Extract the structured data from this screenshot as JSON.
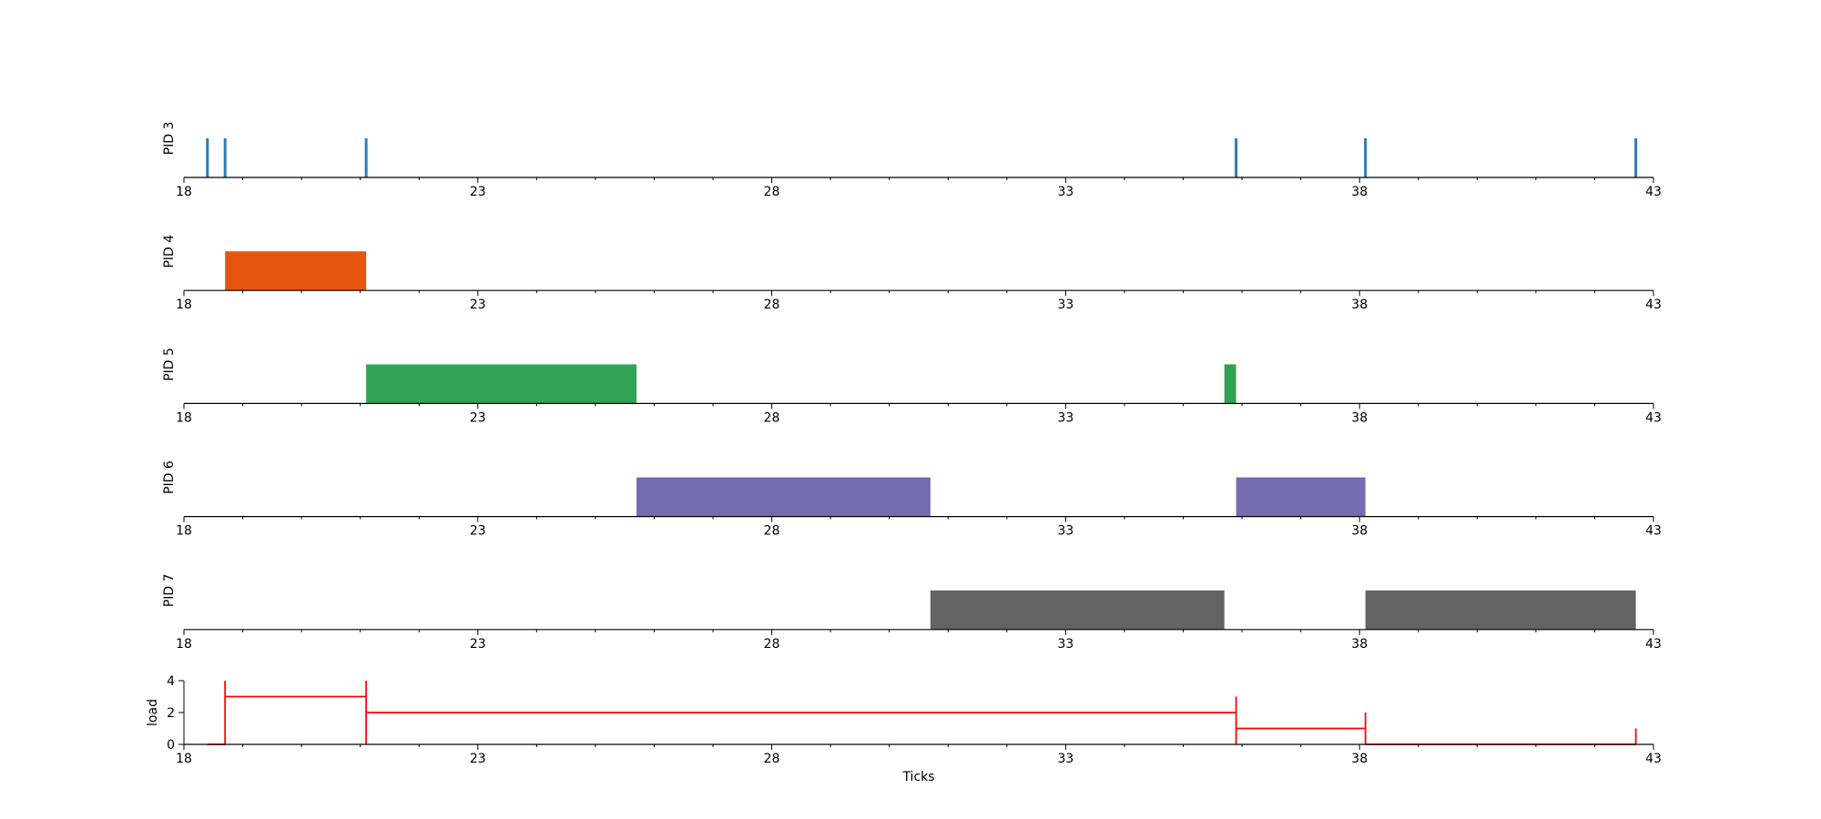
{
  "chart_data": {
    "type": "timeline",
    "xlim": [
      18,
      43
    ],
    "xticks": [
      18,
      23,
      28,
      33,
      38,
      43
    ],
    "xlabel": "Ticks",
    "panels": [
      {
        "label": "PID 3",
        "color": "#2b7bba",
        "kind": "events",
        "events": [
          18.4,
          18.7,
          21.1,
          35.9,
          38.1,
          42.7
        ]
      },
      {
        "label": "PID 4",
        "color": "#e6550d",
        "kind": "bars",
        "intervals": [
          [
            18.7,
            21.1
          ]
        ]
      },
      {
        "label": "PID 5",
        "color": "#31a354",
        "kind": "bars",
        "intervals": [
          [
            21.1,
            25.7
          ],
          [
            35.7,
            35.9
          ]
        ]
      },
      {
        "label": "PID 6",
        "color": "#756bb1",
        "kind": "bars",
        "intervals": [
          [
            25.7,
            30.7
          ],
          [
            35.9,
            38.1
          ]
        ]
      },
      {
        "label": "PID 7",
        "color": "#636363",
        "kind": "bars",
        "intervals": [
          [
            30.7,
            35.7
          ],
          [
            38.1,
            42.7
          ]
        ]
      }
    ],
    "load": {
      "label": "load",
      "color": "#ff0000",
      "yticks": [
        0,
        2,
        4
      ],
      "ylim": [
        0,
        4
      ],
      "steps": [
        {
          "x": [
            18.4,
            18.7
          ],
          "y": 0
        },
        {
          "x": [
            18.7,
            21.1
          ],
          "y": 3
        },
        {
          "x": [
            21.1,
            35.9
          ],
          "y": 2
        },
        {
          "x": [
            35.9,
            38.1
          ],
          "y": 1
        },
        {
          "x": [
            38.1,
            42.7
          ],
          "y": 0
        }
      ],
      "spikes": [
        {
          "x": 18.7,
          "y": 4
        },
        {
          "x": 21.1,
          "y": 4
        },
        {
          "x": 35.9,
          "y": 3
        },
        {
          "x": 38.1,
          "y": 2
        },
        {
          "x": 42.7,
          "y": 1
        }
      ]
    }
  }
}
